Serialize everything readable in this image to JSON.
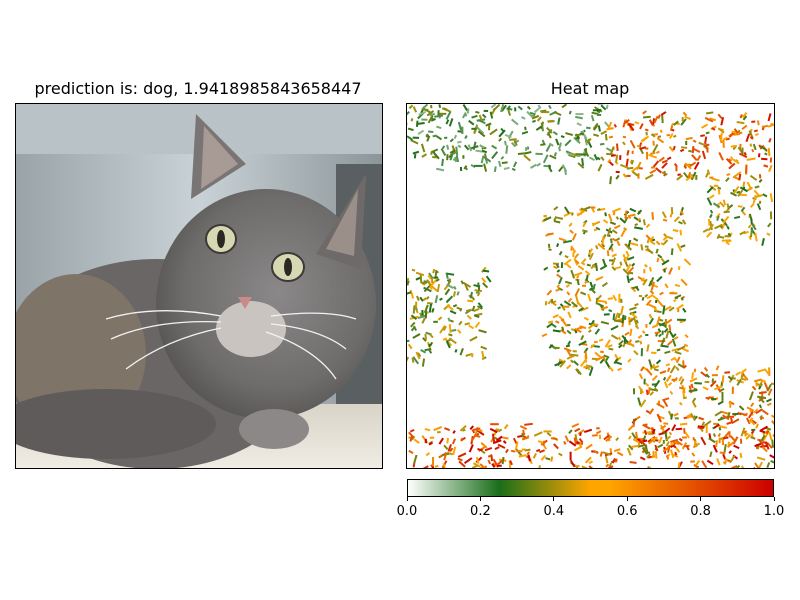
{
  "left_panel": {
    "title": "prediction is: dog, 1.9418985843658447",
    "image_alt": "grey long-haired cat lying on a blanket"
  },
  "right_panel": {
    "title": "Heat map"
  },
  "colorbar": {
    "colors": [
      "#ffffff",
      "#1a6e1a",
      "#ffa500",
      "#cc0000"
    ],
    "ticks": [
      "0.0",
      "0.2",
      "0.4",
      "0.6",
      "0.8",
      "1.0"
    ]
  },
  "chart_data": {
    "type": "heatmap",
    "title": "Heat map",
    "vmin": 0.0,
    "vmax": 1.0,
    "colorbar_ticks": [
      0.0,
      0.2,
      0.4,
      0.6,
      0.8,
      1.0
    ],
    "regions": [
      {
        "area": "top-left band",
        "intensity": 0.35
      },
      {
        "area": "top-right band",
        "intensity": 0.85
      },
      {
        "area": "upper-right diagonal",
        "intensity": 0.5
      },
      {
        "area": "center",
        "intensity": 0.6
      },
      {
        "area": "left-middle",
        "intensity": 0.45
      },
      {
        "area": "bottom-right",
        "intensity": 0.75
      },
      {
        "area": "bottom band",
        "intensity": 0.9
      }
    ]
  }
}
